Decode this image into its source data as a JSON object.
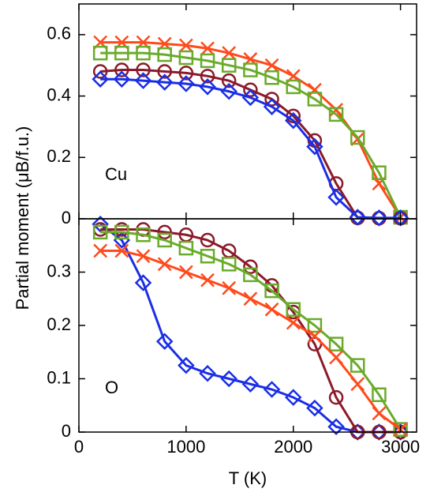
{
  "chart_data": [
    {
      "type": "line",
      "annotation": "Cu",
      "ylabel": "Partial moment (μB/f.u.)",
      "x": [
        200,
        400,
        600,
        800,
        1000,
        1200,
        1400,
        1600,
        1800,
        2000,
        2200,
        2400,
        2600,
        2800,
        3000
      ],
      "xlim": [
        0,
        3150
      ],
      "xticks": [
        0,
        1000,
        2000,
        3000
      ],
      "ylim": [
        0,
        0.7
      ],
      "yticks": [
        0,
        0.2,
        0.4,
        0.6
      ],
      "series": [
        {
          "color": "#ff4a1c",
          "marker": "x",
          "values": [
            0.575,
            0.575,
            0.575,
            0.57,
            0.565,
            0.555,
            0.54,
            0.52,
            0.5,
            0.465,
            0.42,
            0.355,
            0.26,
            0.115,
            0.005
          ]
        },
        {
          "color": "#6aab2a",
          "marker": "square",
          "values": [
            0.54,
            0.54,
            0.54,
            0.535,
            0.525,
            0.515,
            0.5,
            0.485,
            0.46,
            0.43,
            0.39,
            0.34,
            0.265,
            0.15,
            0.005
          ]
        },
        {
          "color": "#8b1a2a",
          "marker": "circle",
          "values": [
            0.48,
            0.485,
            0.485,
            0.48,
            0.475,
            0.465,
            0.45,
            0.42,
            0.39,
            0.335,
            0.255,
            0.115,
            0.003,
            0.002,
            0.002
          ]
        },
        {
          "color": "#1a2ee6",
          "marker": "diamond",
          "values": [
            0.455,
            0.455,
            0.45,
            0.445,
            0.44,
            0.43,
            0.415,
            0.395,
            0.365,
            0.32,
            0.235,
            0.07,
            0.005,
            0.003,
            0.003
          ]
        }
      ]
    },
    {
      "type": "line",
      "annotation": "O",
      "xlabel": "T (K)",
      "x": [
        200,
        400,
        600,
        800,
        1000,
        1200,
        1400,
        1600,
        1800,
        2000,
        2200,
        2400,
        2600,
        2800,
        3000
      ],
      "xlim": [
        0,
        3150
      ],
      "xticks": [
        0,
        1000,
        2000,
        3000
      ],
      "ylim": [
        0,
        0.4
      ],
      "yticks": [
        0,
        0.1,
        0.2,
        0.3
      ],
      "series": [
        {
          "color": "#1a2ee6",
          "marker": "diamond",
          "values": [
            0.39,
            0.36,
            0.28,
            0.17,
            0.125,
            0.11,
            0.1,
            0.09,
            0.08,
            0.065,
            0.045,
            0.01,
            0.0,
            0.0,
            0.0
          ]
        },
        {
          "color": "#8b1a2a",
          "marker": "circle",
          "values": [
            0.38,
            0.38,
            0.38,
            0.375,
            0.37,
            0.36,
            0.34,
            0.31,
            0.275,
            0.225,
            0.165,
            0.065,
            0.0,
            0.0,
            0.0
          ]
        },
        {
          "color": "#6aab2a",
          "marker": "square",
          "values": [
            0.375,
            0.375,
            0.37,
            0.36,
            0.345,
            0.33,
            0.315,
            0.295,
            0.265,
            0.23,
            0.2,
            0.165,
            0.125,
            0.07,
            0.005
          ]
        },
        {
          "color": "#ff4a1c",
          "marker": "x",
          "values": [
            0.34,
            0.34,
            0.33,
            0.315,
            0.3,
            0.285,
            0.27,
            0.25,
            0.23,
            0.205,
            0.18,
            0.14,
            0.09,
            0.035,
            0.005
          ]
        }
      ]
    }
  ]
}
